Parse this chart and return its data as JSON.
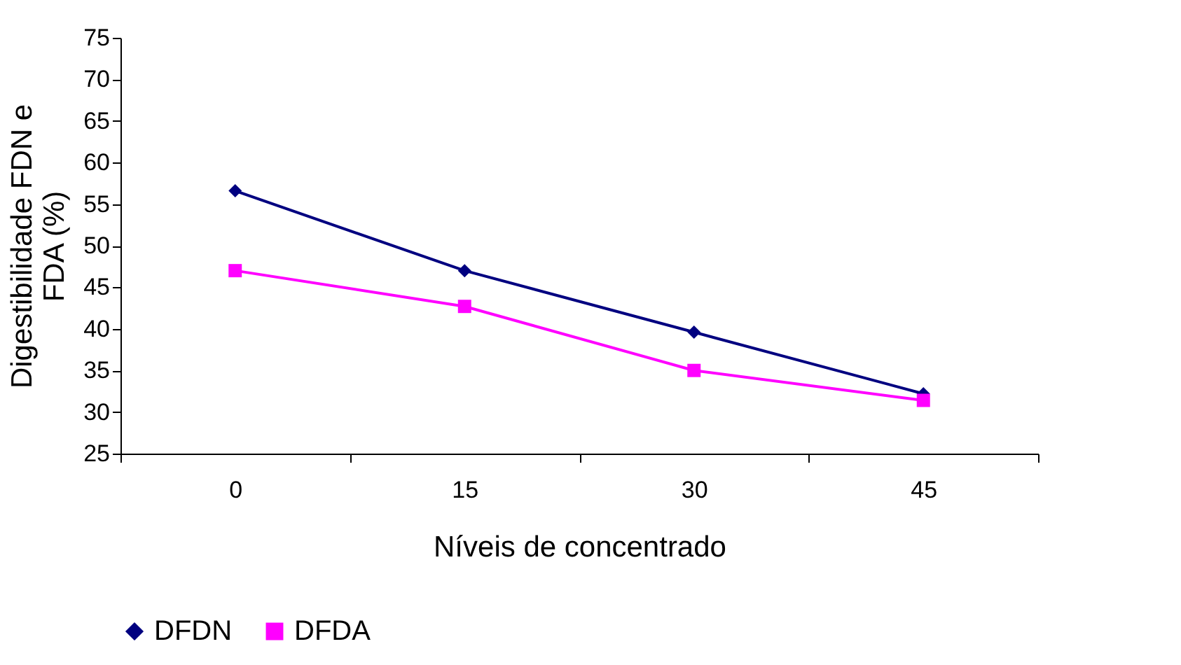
{
  "chart_data": {
    "type": "line",
    "xlabel": "Níveis de concentrado",
    "ylabel": "Digestibilidade FDN e FDA (%)",
    "categories": [
      "0",
      "15",
      "30",
      "45"
    ],
    "series": [
      {
        "name": "DFDN",
        "color": "#000080",
        "marker": "diamond",
        "values": [
          56.6,
          47,
          39.6,
          32.2
        ]
      },
      {
        "name": "DFDA",
        "color": "#ff00ff",
        "marker": "square",
        "values": [
          47,
          42.7,
          35,
          31.4
        ]
      }
    ],
    "ylim": [
      25,
      75
    ],
    "yticks": [
      25,
      30,
      35,
      40,
      45,
      50,
      55,
      60,
      65,
      70,
      75
    ],
    "grid": false,
    "legend": "bottom",
    "line_style": "solid"
  }
}
